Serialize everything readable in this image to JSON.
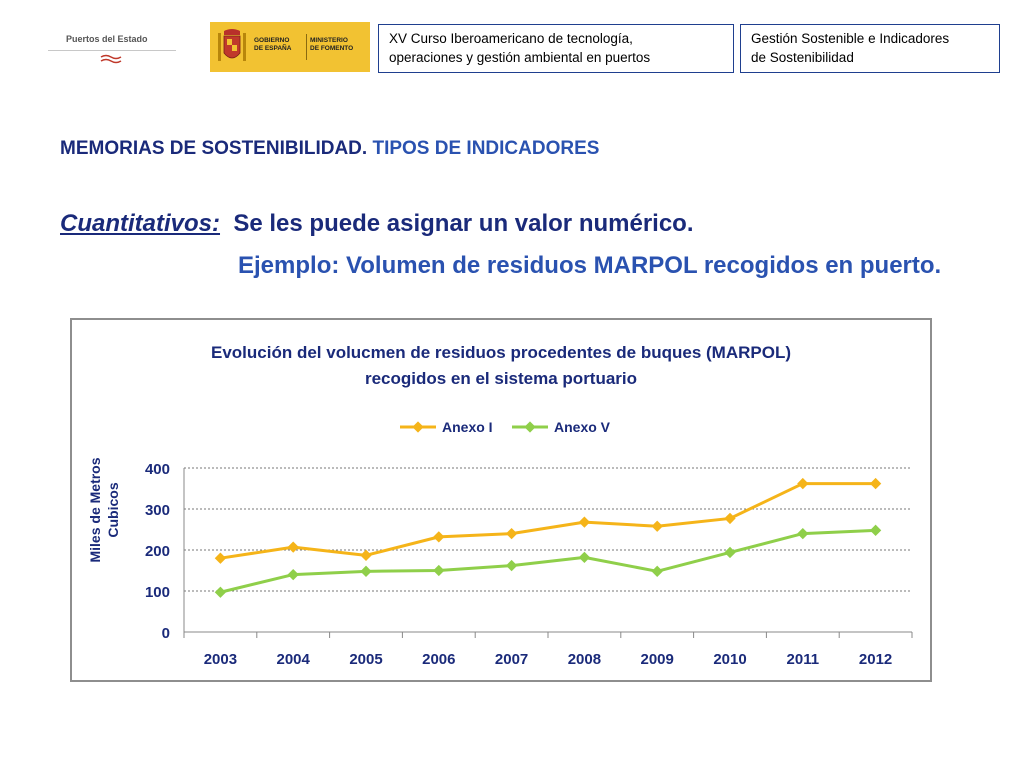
{
  "header": {
    "logo_puertos_text": "Puertos del Estado",
    "logo_gobierno_text": [
      "GOBIERNO",
      "DE ESPAÑA"
    ],
    "logo_ministerio_text": [
      "MINISTERIO",
      "DE FOMENTO"
    ],
    "course_box": [
      "XV Curso Iberoamericano de tecnología,",
      "operaciones y gestión ambiental en puertos"
    ],
    "module_box": [
      "Gestión Sostenible e Indicadores",
      "de Sostenibilidad"
    ]
  },
  "content": {
    "section_title_part1": "MEMORIAS DE SOSTENIBILIDAD.",
    "section_title_part2": "TIPOS DE INDICADORES",
    "quant_label": "Cuantitativos:",
    "quant_desc": "Se les puede asignar un valor numérico.",
    "example": "Ejemplo: Volumen de residuos MARPOL recogidos en puerto."
  },
  "colors": {
    "dark_blue": "#1a2a7a",
    "mid_blue": "#2a52b0",
    "anexo_i": "#f5b419",
    "anexo_v": "#8fcf4a"
  },
  "chart_data": {
    "type": "line",
    "title": [
      "Evolución del volucmen de residuos procedentes de buques (MARPOL)",
      "recogidos en el sistema portuario"
    ],
    "ylabel": [
      "Miles de Metros",
      "Cubicos"
    ],
    "xlabel": "",
    "categories": [
      "2003",
      "2004",
      "2005",
      "2006",
      "2007",
      "2008",
      "2009",
      "2010",
      "2011",
      "2012"
    ],
    "series": [
      {
        "name": "Anexo I",
        "color": "#f5b419",
        "values": [
          180,
          207,
          187,
          232,
          240,
          268,
          258,
          277,
          362,
          362
        ]
      },
      {
        "name": "Anexo V",
        "color": "#8fcf4a",
        "values": [
          97,
          140,
          148,
          150,
          162,
          182,
          148,
          194,
          240,
          248
        ]
      }
    ],
    "ylim": [
      0,
      400
    ],
    "yticks": [
      "0",
      "100",
      "200",
      "300",
      "400"
    ],
    "grid": true,
    "legend_position": "top"
  }
}
